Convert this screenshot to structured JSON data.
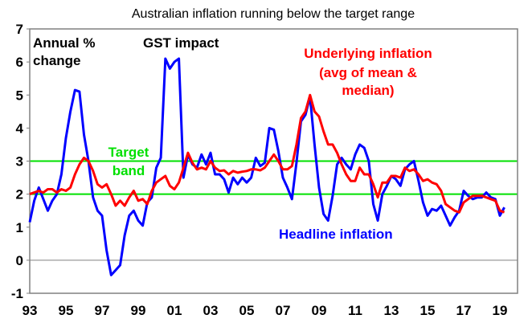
{
  "chart_data": {
    "type": "line",
    "title": "Australian inflation running below the target range",
    "ylabel": "Annual % change",
    "ylim": [
      -1,
      7
    ],
    "yticks": [
      -1,
      0,
      1,
      2,
      3,
      4,
      5,
      6,
      7
    ],
    "xlim": [
      1993,
      2020
    ],
    "xticks": [
      {
        "year": 1993,
        "label": "93"
      },
      {
        "year": 1995,
        "label": "95"
      },
      {
        "year": 1997,
        "label": "97"
      },
      {
        "year": 1999,
        "label": "99"
      },
      {
        "year": 2001,
        "label": "01"
      },
      {
        "year": 2003,
        "label": "03"
      },
      {
        "year": 2005,
        "label": "05"
      },
      {
        "year": 2007,
        "label": "07"
      },
      {
        "year": 2009,
        "label": "09"
      },
      {
        "year": 2011,
        "label": "11"
      },
      {
        "year": 2013,
        "label": "13"
      },
      {
        "year": 2015,
        "label": "15"
      },
      {
        "year": 2017,
        "label": "17"
      },
      {
        "year": 2019,
        "label": "19"
      }
    ],
    "target_band": [
      2,
      3
    ],
    "colors": {
      "headline": "#0000FF",
      "underlying": "#FF0000",
      "band": "#00E000",
      "axis": "#808080"
    },
    "annotations": {
      "ylabel_line1": "Annual %",
      "ylabel_line2": "change",
      "gst": "GST impact",
      "target_line1": "Target",
      "target_line2": "band",
      "underlying_line1": "Underlying inflation",
      "underlying_line2": "(avg of mean &",
      "underlying_line3": "median)",
      "headline": "Headline inflation"
    },
    "x_start": 1993,
    "x_step": 0.25,
    "series": [
      {
        "name": "Headline inflation",
        "key": "headline",
        "values": [
          1.15,
          1.8,
          2.2,
          1.85,
          1.5,
          1.8,
          2.0,
          2.6,
          3.7,
          4.5,
          5.15,
          5.1,
          3.8,
          3.0,
          1.9,
          1.5,
          1.35,
          0.3,
          -0.45,
          -0.3,
          -0.15,
          0.75,
          1.35,
          1.5,
          1.2,
          1.05,
          1.75,
          1.9,
          2.8,
          3.1,
          6.1,
          5.8,
          6.0,
          6.1,
          2.5,
          3.2,
          2.9,
          2.8,
          3.2,
          2.9,
          3.25,
          2.6,
          2.6,
          2.45,
          2.05,
          2.5,
          2.3,
          2.5,
          2.35,
          2.5,
          3.1,
          2.85,
          2.95,
          4.0,
          3.95,
          3.3,
          2.5,
          2.2,
          1.85,
          2.95,
          4.2,
          4.4,
          4.95,
          3.5,
          2.2,
          1.4,
          1.2,
          1.95,
          2.9,
          3.1,
          2.9,
          2.75,
          3.2,
          3.5,
          3.4,
          3.0,
          1.7,
          1.2,
          2.0,
          2.25,
          2.55,
          2.45,
          2.25,
          2.75,
          2.9,
          3.0,
          2.4,
          1.75,
          1.35,
          1.55,
          1.5,
          1.65,
          1.35,
          1.05,
          1.3,
          1.5,
          2.1,
          1.95,
          1.85,
          1.9,
          1.9,
          2.05,
          1.9,
          1.85,
          1.35,
          1.6
        ]
      },
      {
        "name": "Underlying inflation (avg of mean & median)",
        "key": "underlying",
        "values": [
          2.0,
          2.05,
          2.1,
          2.05,
          2.15,
          2.15,
          2.05,
          2.15,
          2.1,
          2.2,
          2.6,
          2.9,
          3.1,
          3.0,
          2.7,
          2.3,
          2.2,
          2.3,
          2.0,
          1.65,
          1.8,
          1.65,
          1.9,
          2.1,
          1.8,
          1.85,
          1.7,
          2.1,
          2.35,
          2.45,
          2.55,
          2.25,
          2.15,
          2.35,
          2.8,
          3.25,
          2.95,
          2.75,
          2.8,
          2.75,
          3.0,
          2.8,
          2.7,
          2.72,
          2.6,
          2.7,
          2.65,
          2.68,
          2.7,
          2.75,
          2.75,
          2.72,
          2.8,
          3.0,
          3.2,
          3.0,
          2.75,
          2.75,
          2.85,
          3.5,
          4.3,
          4.5,
          5.0,
          4.5,
          4.35,
          3.9,
          3.5,
          3.5,
          3.25,
          2.9,
          2.6,
          2.4,
          2.4,
          2.8,
          2.6,
          2.6,
          2.3,
          1.9,
          2.35,
          2.35,
          2.55,
          2.55,
          2.5,
          2.8,
          2.7,
          2.75,
          2.6,
          2.4,
          2.45,
          2.35,
          2.3,
          2.1,
          1.7,
          1.6,
          1.5,
          1.45,
          1.75,
          1.85,
          1.95,
          1.95,
          1.95,
          1.9,
          1.85,
          1.8,
          1.5,
          1.45
        ]
      }
    ]
  }
}
